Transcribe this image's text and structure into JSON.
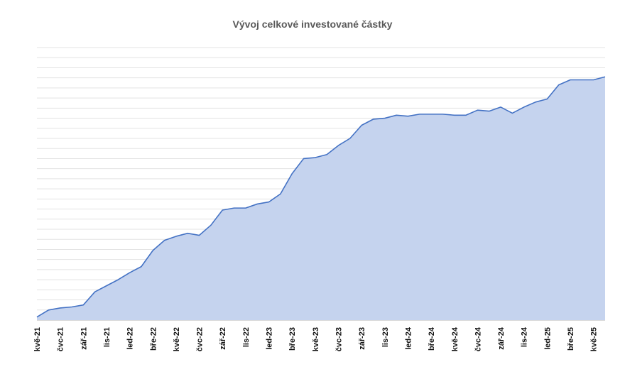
{
  "chart_data": {
    "type": "area",
    "title": "Vývoj celkové investované částky",
    "xlabel": "",
    "ylabel": "",
    "grid": true,
    "legend": "none",
    "y_tick_labels_shown": false,
    "ylim": [
      0,
      27
    ],
    "x": [
      "kvě-21",
      "čvn-21",
      "čvc-21",
      "srp-21",
      "zář-21",
      "říj-21",
      "lis-21",
      "pro-21",
      "led-22",
      "úno-22",
      "bře-22",
      "dub-22",
      "kvě-22",
      "čvn-22",
      "čvc-22",
      "srp-22",
      "zář-22",
      "říj-22",
      "lis-22",
      "pro-22",
      "led-23",
      "úno-23",
      "bře-23",
      "dub-23",
      "kvě-23",
      "čvn-23",
      "čvc-23",
      "srp-23",
      "zář-23",
      "říj-23",
      "lis-23",
      "pro-23",
      "led-24",
      "úno-24",
      "bře-24",
      "dub-24",
      "kvě-24",
      "čvn-24",
      "čvc-24",
      "srp-24",
      "zář-24",
      "říj-24",
      "lis-24",
      "pro-24",
      "led-25",
      "úno-25",
      "bře-25",
      "dub-25",
      "kvě-25",
      "čvn-25"
    ],
    "x_tick_labels": [
      "kvě-21",
      "čvc-21",
      "zář-21",
      "lis-21",
      "led-22",
      "bře-22",
      "kvě-22",
      "čvc-22",
      "zář-22",
      "lis-22",
      "led-23",
      "bře-23",
      "kvě-23",
      "čvc-23",
      "zář-23",
      "lis-23",
      "led-24",
      "bře-24",
      "kvě-24",
      "čvc-24",
      "zář-24",
      "lis-24",
      "led-25",
      "bře-25",
      "kvě-25"
    ],
    "series": [
      {
        "values": [
          0.3,
          1.0,
          1.2,
          1.3,
          1.5,
          2.8,
          3.4,
          4.0,
          4.7,
          5.3,
          6.9,
          7.9,
          8.3,
          8.6,
          8.4,
          9.4,
          10.9,
          11.1,
          11.1,
          11.5,
          11.7,
          12.5,
          14.5,
          16.0,
          16.1,
          16.4,
          17.3,
          18.0,
          19.3,
          19.9,
          20.0,
          20.3,
          20.2,
          20.4,
          20.4,
          20.4,
          20.3,
          20.3,
          20.8,
          20.7,
          21.1,
          20.5,
          21.1,
          21.6,
          21.9,
          23.3,
          23.8,
          23.8,
          23.8,
          24.1
        ],
        "color": "#4472C4",
        "fill": "#C5D3EE"
      }
    ]
  }
}
